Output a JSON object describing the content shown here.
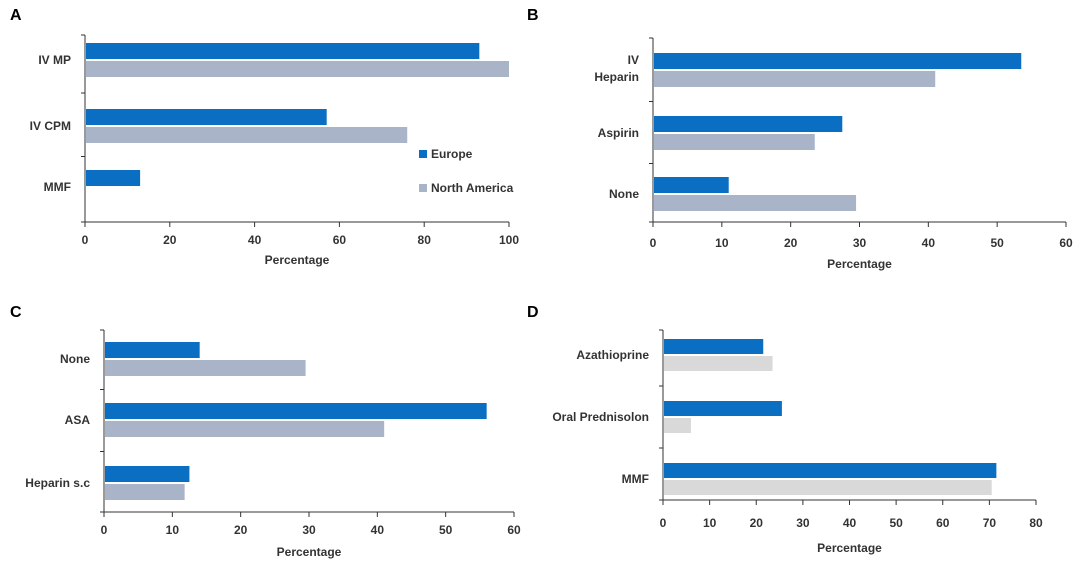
{
  "colors": {
    "europe": "#0a6fc2",
    "north_america": "#a9b4c8",
    "light_gray": "#d9d9d9"
  },
  "legend": [
    "Europe",
    "North America"
  ],
  "chart_data": [
    {
      "panel": "A",
      "type": "bar",
      "orientation": "horizontal",
      "categories": [
        "IV MP",
        "IV CPM",
        "MMF"
      ],
      "series": [
        {
          "name": "Europe",
          "values": [
            93,
            57,
            13
          ]
        },
        {
          "name": "North America",
          "values": [
            100,
            76,
            0
          ]
        }
      ],
      "xlabel": "Percentage",
      "xlim": [
        0,
        100
      ],
      "xticks": [
        0,
        20,
        40,
        60,
        80,
        100
      ],
      "legend_position": "right"
    },
    {
      "panel": "B",
      "type": "bar",
      "orientation": "horizontal",
      "categories": [
        "IV\nHeparin",
        "Aspirin",
        "None"
      ],
      "series": [
        {
          "name": "Europe",
          "values": [
            53.5,
            27.5,
            11
          ]
        },
        {
          "name": "North America",
          "values": [
            41,
            23.5,
            29.5
          ]
        }
      ],
      "xlabel": "Percentage",
      "xlim": [
        0,
        60
      ],
      "xticks": [
        0,
        10,
        20,
        30,
        40,
        50,
        60
      ]
    },
    {
      "panel": "C",
      "type": "bar",
      "orientation": "horizontal",
      "categories": [
        "None",
        "ASA",
        "Heparin s.c"
      ],
      "series": [
        {
          "name": "Europe",
          "values": [
            14,
            56,
            12.5
          ]
        },
        {
          "name": "North America",
          "values": [
            29.5,
            41,
            11.8
          ]
        }
      ],
      "xlabel": "Percentage",
      "xlim": [
        0,
        60
      ],
      "xticks": [
        0,
        10,
        20,
        30,
        40,
        50,
        60
      ]
    },
    {
      "panel": "D",
      "type": "bar",
      "orientation": "horizontal",
      "categories": [
        "Azathioprine",
        "Oral Prednisolon",
        "MMF"
      ],
      "series": [
        {
          "name": "Europe",
          "values": [
            21.5,
            25.5,
            71.5
          ]
        },
        {
          "name": "North America",
          "values": [
            23.5,
            6,
            70.5
          ]
        }
      ],
      "xlabel": "Percentage",
      "xlim": [
        0,
        80
      ],
      "xticks": [
        0,
        10,
        20,
        30,
        40,
        50,
        60,
        70,
        80
      ]
    }
  ]
}
